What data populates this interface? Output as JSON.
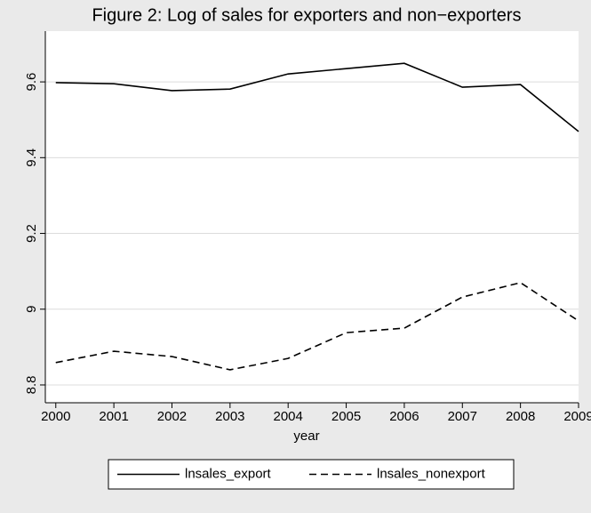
{
  "chart_data": {
    "type": "line",
    "title": "Figure 2: Log of sales for exporters and non−exporters",
    "x_label": "year",
    "x": [
      2000,
      2001,
      2002,
      2003,
      2004,
      2005,
      2006,
      2007,
      2008,
      2009
    ],
    "series": [
      {
        "name": "lnsales_export",
        "color": "#000000",
        "dash": "solid",
        "values": [
          9.598,
          9.595,
          9.577,
          9.581,
          9.621,
          9.635,
          9.649,
          9.586,
          9.593,
          9.469
        ]
      },
      {
        "name": "lnsales_nonexport",
        "color": "#000000",
        "dash": "dashed",
        "values": [
          8.859,
          8.889,
          8.875,
          8.84,
          8.87,
          8.938,
          8.95,
          9.032,
          9.07,
          8.969
        ]
      }
    ],
    "xlim": [
      1999.82,
      2009
    ],
    "xticks": [
      2000,
      2001,
      2002,
      2003,
      2004,
      2005,
      2006,
      2007,
      2008,
      2009
    ],
    "ylim": [
      8.753,
      9.734
    ],
    "yticks": [
      8.8,
      9,
      9.2,
      9.4,
      9.6
    ],
    "grid": true,
    "legend": "bottom"
  }
}
